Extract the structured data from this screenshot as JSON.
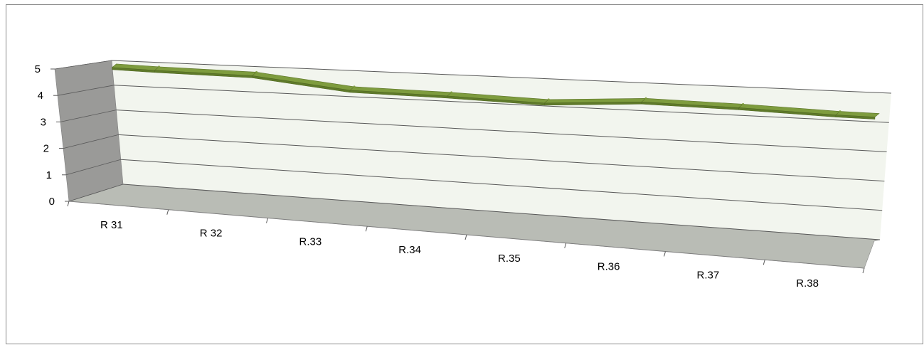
{
  "chart_data": {
    "type": "line",
    "style": "3d-ribbon",
    "title": "",
    "xlabel": "",
    "ylabel": "",
    "categories": [
      "R 31",
      "R 32",
      "R.33",
      "R.34",
      "R.35",
      "R.36",
      "R.37",
      "R.38"
    ],
    "series": [
      {
        "name": "",
        "color": "#76923c",
        "values": [
          5.0,
          4.95,
          4.55,
          4.5,
          4.4,
          4.6,
          4.55,
          4.45
        ]
      }
    ],
    "yticks": [
      "0",
      "1",
      "2",
      "3",
      "4",
      "5"
    ],
    "ylim": [
      0,
      5
    ],
    "grid": true,
    "legend": "none"
  },
  "colors": {
    "back_wall": "#f2f5ee",
    "side_wall": "#9a9a98",
    "floor": "#b9bcb5",
    "ribbon_top": "#7e9c3e",
    "ribbon_front": "#5f7a2a",
    "gridline": "#595959"
  }
}
